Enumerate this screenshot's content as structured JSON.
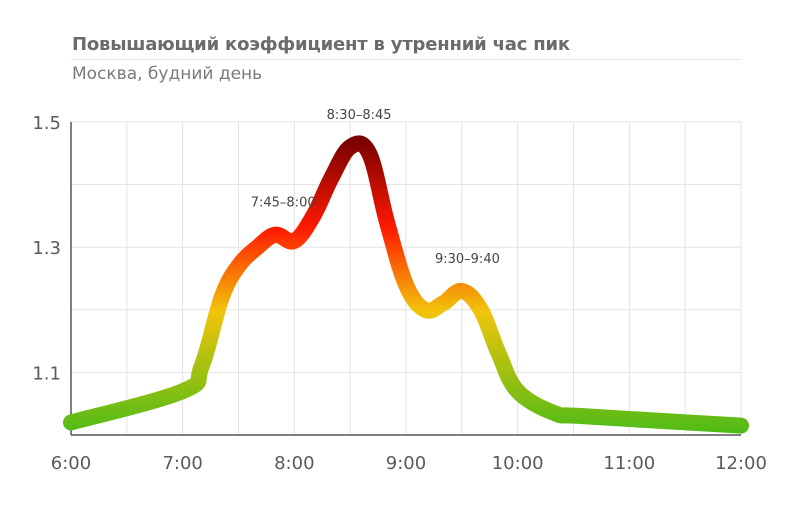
{
  "chart_data": {
    "type": "line",
    "title": "Повышающий коэффициент в утренний час пик",
    "subtitle": "Москва, будний день",
    "x_ticks": [
      "6:00",
      "7:00",
      "8:00",
      "9:00",
      "10:00",
      "11:00",
      "12:00"
    ],
    "y_ticks": [
      "1.1",
      "1.3",
      "1.5"
    ],
    "xlim": [
      6,
      12
    ],
    "ylim": [
      1.0,
      1.5
    ],
    "grid": true,
    "series": [
      {
        "points": [
          {
            "x": 6.0,
            "y": 1.02
          },
          {
            "x": 7.0,
            "y": 1.07
          },
          {
            "x": 7.17,
            "y": 1.11
          },
          {
            "x": 7.35,
            "y": 1.22
          },
          {
            "x": 7.5,
            "y": 1.27
          },
          {
            "x": 7.67,
            "y": 1.3
          },
          {
            "x": 7.83,
            "y": 1.32
          },
          {
            "x": 8.0,
            "y": 1.31
          },
          {
            "x": 8.17,
            "y": 1.35
          },
          {
            "x": 8.33,
            "y": 1.41
          },
          {
            "x": 8.5,
            "y": 1.46
          },
          {
            "x": 8.67,
            "y": 1.45
          },
          {
            "x": 8.83,
            "y": 1.34
          },
          {
            "x": 9.0,
            "y": 1.24
          },
          {
            "x": 9.17,
            "y": 1.2
          },
          {
            "x": 9.33,
            "y": 1.21
          },
          {
            "x": 9.5,
            "y": 1.23
          },
          {
            "x": 9.67,
            "y": 1.2
          },
          {
            "x": 9.83,
            "y": 1.13
          },
          {
            "x": 10.0,
            "y": 1.07
          },
          {
            "x": 10.33,
            "y": 1.035
          },
          {
            "x": 10.6,
            "y": 1.03
          },
          {
            "x": 12.0,
            "y": 1.015
          }
        ]
      }
    ],
    "annotations": [
      {
        "text": "7:45–8:00",
        "x": 7.9,
        "y": 1.33
      },
      {
        "text": "8:30–8:45",
        "x": 8.58,
        "y": 1.47
      },
      {
        "text": "9:30–9:40",
        "x": 9.55,
        "y": 1.24
      }
    ],
    "colors": {
      "grid": "#e3e3e3",
      "axis": "#555555",
      "gradient_low": "#4cbb17",
      "gradient_mid": "#f2c40a",
      "gradient_high": "#ff1a00",
      "gradient_top": "#7a0000"
    }
  }
}
